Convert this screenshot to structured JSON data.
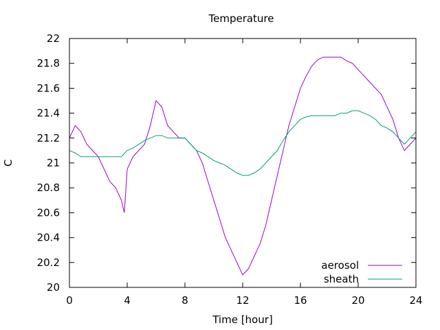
{
  "chart_data": {
    "type": "line",
    "title": "Temperature",
    "xlabel": "Time [hour]",
    "ylabel": "C",
    "xlim": [
      0,
      24
    ],
    "ylim": [
      20,
      22
    ],
    "xticks": [
      "0",
      "4",
      "8",
      "12",
      "16",
      "20",
      "24"
    ],
    "yticks": [
      "20",
      "20.2",
      "20.4",
      "20.6",
      "20.8",
      "21",
      "21.2",
      "21.4",
      "21.6",
      "21.8",
      "22"
    ],
    "grid": false,
    "legend_position": "bottom-right",
    "series": [
      {
        "name": "aerosol",
        "color": "#9400d3",
        "x": [
          0,
          0.4,
          0.8,
          1.2,
          1.6,
          2,
          2.4,
          2.8,
          3.2,
          3.6,
          3.8,
          4,
          4.4,
          4.8,
          5.2,
          5.6,
          6,
          6.4,
          6.8,
          7.2,
          7.6,
          8,
          8.4,
          8.8,
          9.2,
          9.6,
          10,
          10.4,
          10.8,
          11.2,
          11.6,
          12,
          12.4,
          12.8,
          13.2,
          13.6,
          14,
          14.4,
          14.8,
          15.2,
          15.6,
          16,
          16.4,
          16.8,
          17.2,
          17.6,
          18,
          18.4,
          18.8,
          19.2,
          19.6,
          20,
          20.4,
          20.8,
          21.2,
          21.6,
          22,
          22.4,
          22.8,
          23.2,
          23.6,
          24
        ],
        "y": [
          21.2,
          21.3,
          21.25,
          21.15,
          21.1,
          21.05,
          20.95,
          20.85,
          20.8,
          20.7,
          20.6,
          20.95,
          21.05,
          21.1,
          21.15,
          21.3,
          21.5,
          21.45,
          21.3,
          21.25,
          21.2,
          21.2,
          21.15,
          21.1,
          21.0,
          20.85,
          20.7,
          20.55,
          20.4,
          20.3,
          20.2,
          20.1,
          20.15,
          20.25,
          20.35,
          20.5,
          20.7,
          20.9,
          21.1,
          21.3,
          21.45,
          21.6,
          21.7,
          21.78,
          21.83,
          21.85,
          21.85,
          21.85,
          21.85,
          21.82,
          21.8,
          21.75,
          21.7,
          21.65,
          21.6,
          21.55,
          21.45,
          21.35,
          21.2,
          21.1,
          21.15,
          21.2
        ]
      },
      {
        "name": "sheath",
        "color": "#009e73",
        "x": [
          0,
          0.4,
          0.8,
          1.2,
          1.6,
          2,
          2.4,
          2.8,
          3.2,
          3.6,
          4,
          4.4,
          4.8,
          5.2,
          5.6,
          6,
          6.4,
          6.8,
          7.2,
          7.6,
          8,
          8.4,
          8.8,
          9.2,
          9.6,
          10,
          10.4,
          10.8,
          11.2,
          11.6,
          12,
          12.4,
          12.8,
          13.2,
          13.6,
          14,
          14.4,
          14.8,
          15.2,
          15.6,
          16,
          16.4,
          16.8,
          17.2,
          17.6,
          18,
          18.4,
          18.8,
          19.2,
          19.6,
          20,
          20.4,
          20.8,
          21.2,
          21.6,
          22,
          22.4,
          22.8,
          23.2,
          23.6,
          24
        ],
        "y": [
          21.1,
          21.08,
          21.05,
          21.05,
          21.05,
          21.05,
          21.05,
          21.05,
          21.05,
          21.05,
          21.1,
          21.12,
          21.15,
          21.18,
          21.2,
          21.22,
          21.22,
          21.2,
          21.2,
          21.2,
          21.2,
          21.15,
          21.1,
          21.08,
          21.05,
          21.02,
          21.0,
          20.98,
          20.95,
          20.92,
          20.9,
          20.9,
          20.92,
          20.95,
          21.0,
          21.05,
          21.1,
          21.18,
          21.25,
          21.3,
          21.35,
          21.37,
          21.38,
          21.38,
          21.38,
          21.38,
          21.38,
          21.4,
          21.4,
          21.42,
          21.42,
          21.4,
          21.38,
          21.35,
          21.3,
          21.28,
          21.25,
          21.2,
          21.15,
          21.2,
          21.25
        ]
      }
    ]
  }
}
